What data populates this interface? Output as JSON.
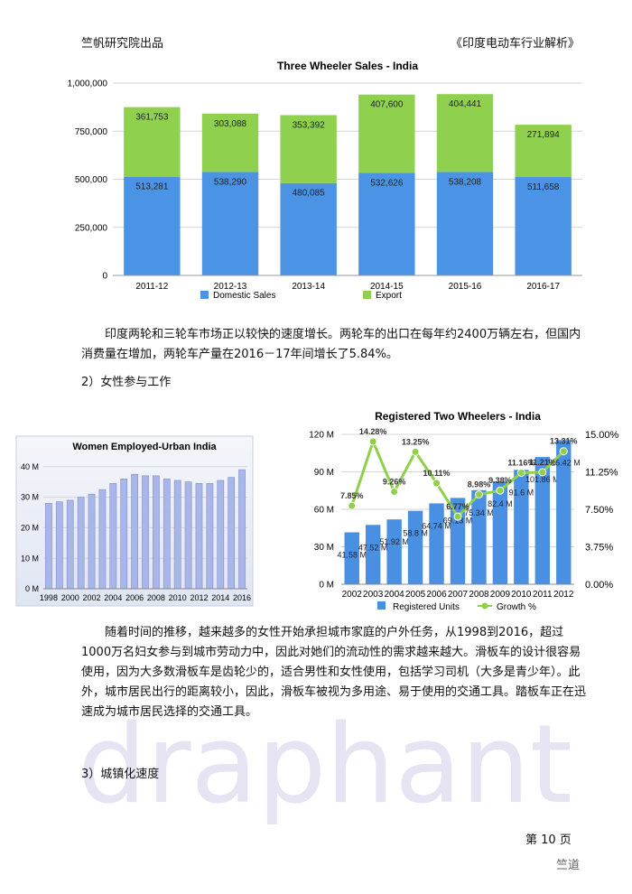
{
  "header": {
    "left": "竺帆研究院出品",
    "right": "《印度电动车行业解析》"
  },
  "chart_data": [
    {
      "type": "stacked_bar",
      "title": "Three Wheeler Sales - India",
      "categories": [
        "2011-12",
        "2012-13",
        "2013-14",
        "2014-15",
        "2015-16",
        "2016-17"
      ],
      "series": [
        {
          "name": "Domestic Sales",
          "color": "#4b93e4",
          "values": [
            513281,
            538290,
            480085,
            532626,
            538208,
            511658
          ],
          "value_labels": [
            "513,281",
            "538,290",
            "480,085",
            "532,626",
            "538,208",
            "511,658"
          ]
        },
        {
          "name": "Export",
          "color": "#8fd14f",
          "values": [
            361753,
            303088,
            353392,
            407600,
            404441,
            271894
          ],
          "value_labels": [
            "361,753",
            "303,088",
            "353,392",
            "407,600",
            "404,441",
            "271,894"
          ]
        }
      ],
      "ylim": [
        0,
        1000000
      ],
      "yticks": [
        0,
        {
          "value": 250000,
          "label": "250,000"
        },
        {
          "value": 500000,
          "label": "500,000"
        },
        {
          "value": 750000,
          "label": "750,000"
        },
        {
          "value": 1000000,
          "label": "1,000,000"
        }
      ],
      "grid": true,
      "legend": "bottom"
    },
    {
      "type": "bar",
      "title": "Women Employed-Urban India",
      "categories": [
        "1998",
        null,
        "2000",
        null,
        "2002",
        null,
        "2004",
        null,
        "2006",
        null,
        "2008",
        null,
        "2010",
        null,
        "2012",
        null,
        "2014",
        null,
        "2016"
      ],
      "values": [
        28,
        28.5,
        29,
        30,
        31,
        32.5,
        34.5,
        36,
        37.5,
        37,
        37,
        36,
        35.5,
        35,
        34.5,
        34.5,
        35.5,
        36.5,
        39
      ],
      "color": "#aab6e8",
      "ylim": [
        0,
        42
      ],
      "yticks": [
        {
          "value": 0,
          "label": "0 M"
        },
        {
          "value": 10,
          "label": "10 M"
        },
        {
          "value": 20,
          "label": "20 M"
        },
        {
          "value": 30,
          "label": "30 M"
        },
        {
          "value": 40,
          "label": "40 M"
        }
      ],
      "grid": true
    },
    {
      "type": "bar_line",
      "title": "Registered Two Wheelers - India",
      "categories": [
        "2002",
        "2003",
        "2004",
        "2005",
        "2006",
        "2007",
        "2008",
        "2009",
        "2010",
        "2011",
        "2012"
      ],
      "series": [
        {
          "name": "Registered Units",
          "color": "#4a90e2",
          "values": [
            41.58,
            47.52,
            51.92,
            58.8,
            64.74,
            69.13,
            75.34,
            82.4,
            91.6,
            101.86,
            115.42
          ],
          "value_labels": [
            "41.58 M",
            "47.52 M",
            "51.92 M",
            "58.8 M",
            "64.74 M",
            "69.13 M",
            "75.34 M",
            "82.4 M",
            "91.6 M",
            "101.86 M",
            "115.42 M"
          ]
        },
        {
          "name": "Growth %",
          "color": "#8ed04a",
          "axis": "y2",
          "values": [
            7.85,
            14.28,
            9.26,
            13.25,
            10.11,
            6.77,
            8.98,
            9.38,
            11.16,
            11.21,
            13.31
          ],
          "value_labels": [
            "7.85%",
            "14.28%",
            "9.26%",
            "13.25%",
            "10.11%",
            "6.77%",
            "8.98%",
            "9.38%",
            "11.16%",
            "11.21%",
            "13.31%"
          ]
        }
      ],
      "ylim": [
        0,
        120
      ],
      "yticks": [
        {
          "value": 0,
          "label": "0 M"
        },
        {
          "value": 30,
          "label": "30 M"
        },
        {
          "value": 60,
          "label": "60 M"
        },
        {
          "value": 90,
          "label": "90 M"
        },
        {
          "value": 120,
          "label": "120 M"
        }
      ],
      "y2lim": [
        0,
        15
      ],
      "y2ticks": [
        {
          "value": 0,
          "label": "0.00%"
        },
        {
          "value": 3.75,
          "label": "3.75%"
        },
        {
          "value": 7.5,
          "label": "7.50%"
        },
        {
          "value": 11.25,
          "label": "11.25%"
        },
        {
          "value": 15,
          "label": "15.00%"
        }
      ],
      "grid": true,
      "legend": "bottom"
    }
  ],
  "paragraphs": [
    "印度两轮和三轮车市场正以较快的速度增长。两轮车的出口在每年约2400万辆左右，但国内消费量在增加，两轮车产量在2016－17年间增长了5.84%。",
    "随着时间的推移，越来越多的女性开始承担城市家庭的户外任务，从1998到2016，超过1000万名妇女参与到城市劳动力中，因此对她们的流动性的需求越来越大。滑板车的设计很容易使用，因为大多数滑板车是齿轮少的，适合男性和女性使用，包括学习司机（大多是青少年）。此外，城市居民出行的距离较小，因此，滑板车被视为多用途、易于使用的交通工具。踏板车正在迅速成为城市居民选择的交通工具。"
  ],
  "headings": [
    "2）女性参与工作",
    "3）城镇化速度"
  ],
  "watermark": "draphant",
  "footer": {
    "page": "第 10 页",
    "logo": "竺道"
  }
}
